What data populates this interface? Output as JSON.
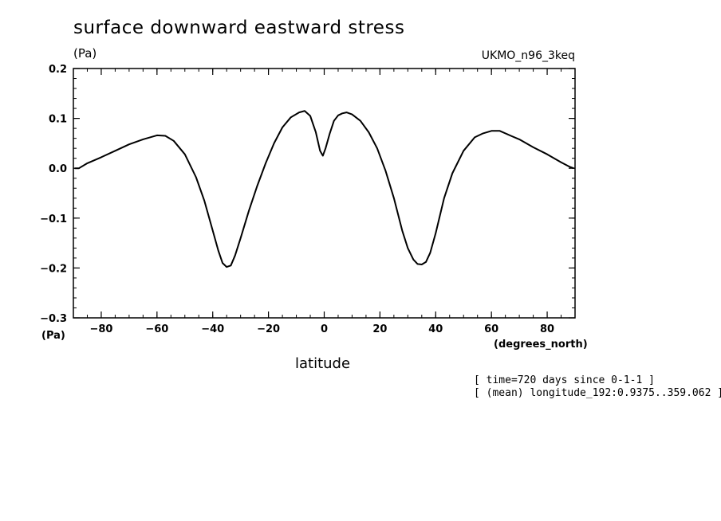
{
  "chart_data": {
    "type": "line",
    "title": "surface downward eastward stress",
    "y_units_top": "(Pa)",
    "y_units_bottom": "(Pa)",
    "dataset_label": "UKMO_n96_3keq",
    "xlabel": "latitude",
    "x_units": "(degrees_north)",
    "annotations": [
      "[ time=720 days since 0-1-1 ]",
      "[ (mean) longitude_192:0.9375..359.062 ]"
    ],
    "xlim": [
      -90,
      90
    ],
    "ylim": [
      -0.3,
      0.2
    ],
    "x_ticks": [
      -80,
      -60,
      -40,
      -20,
      0,
      20,
      40,
      60,
      80
    ],
    "x_tick_labels": [
      "−80",
      "−60",
      "−40",
      "−20",
      "0",
      "20",
      "40",
      "60",
      "80"
    ],
    "y_ticks": [
      -0.3,
      -0.2,
      -0.1,
      0.0,
      0.1,
      0.2
    ],
    "y_tick_labels": [
      "−0.3",
      "−0.2",
      "−0.1",
      "0.0",
      "0.1",
      "0.2"
    ],
    "grid": false,
    "series": [
      {
        "x": [
          -89.5,
          -88,
          -85,
          -80,
          -75,
          -70,
          -65,
          -60,
          -57,
          -54,
          -50,
          -46,
          -43,
          -40,
          -38,
          -36.5,
          -35,
          -33.5,
          -32,
          -30,
          -27,
          -24,
          -21,
          -18,
          -15,
          -12,
          -9,
          -7,
          -5,
          -3,
          -1.5,
          -0.5,
          0.5,
          2,
          3.5,
          5,
          6.5,
          8,
          10,
          13,
          16,
          19,
          22,
          25,
          28,
          30,
          32,
          33.5,
          35,
          36.5,
          38,
          40,
          43,
          46,
          50,
          54,
          57,
          60,
          63,
          67,
          70,
          75,
          80,
          85,
          88,
          89.5
        ],
        "y": [
          0.0,
          0.0,
          0.01,
          0.022,
          0.035,
          0.048,
          0.058,
          0.066,
          0.065,
          0.055,
          0.028,
          -0.018,
          -0.065,
          -0.125,
          -0.165,
          -0.19,
          -0.198,
          -0.195,
          -0.175,
          -0.14,
          -0.085,
          -0.035,
          0.01,
          0.05,
          0.082,
          0.102,
          0.112,
          0.115,
          0.105,
          0.072,
          0.035,
          0.025,
          0.04,
          0.07,
          0.095,
          0.106,
          0.11,
          0.112,
          0.108,
          0.095,
          0.072,
          0.04,
          -0.005,
          -0.06,
          -0.125,
          -0.16,
          -0.183,
          -0.192,
          -0.193,
          -0.188,
          -0.17,
          -0.13,
          -0.06,
          -0.01,
          0.035,
          0.062,
          0.07,
          0.075,
          0.075,
          0.065,
          0.058,
          0.042,
          0.028,
          0.012,
          0.003,
          0.0
        ],
        "color": "#000000"
      }
    ]
  }
}
